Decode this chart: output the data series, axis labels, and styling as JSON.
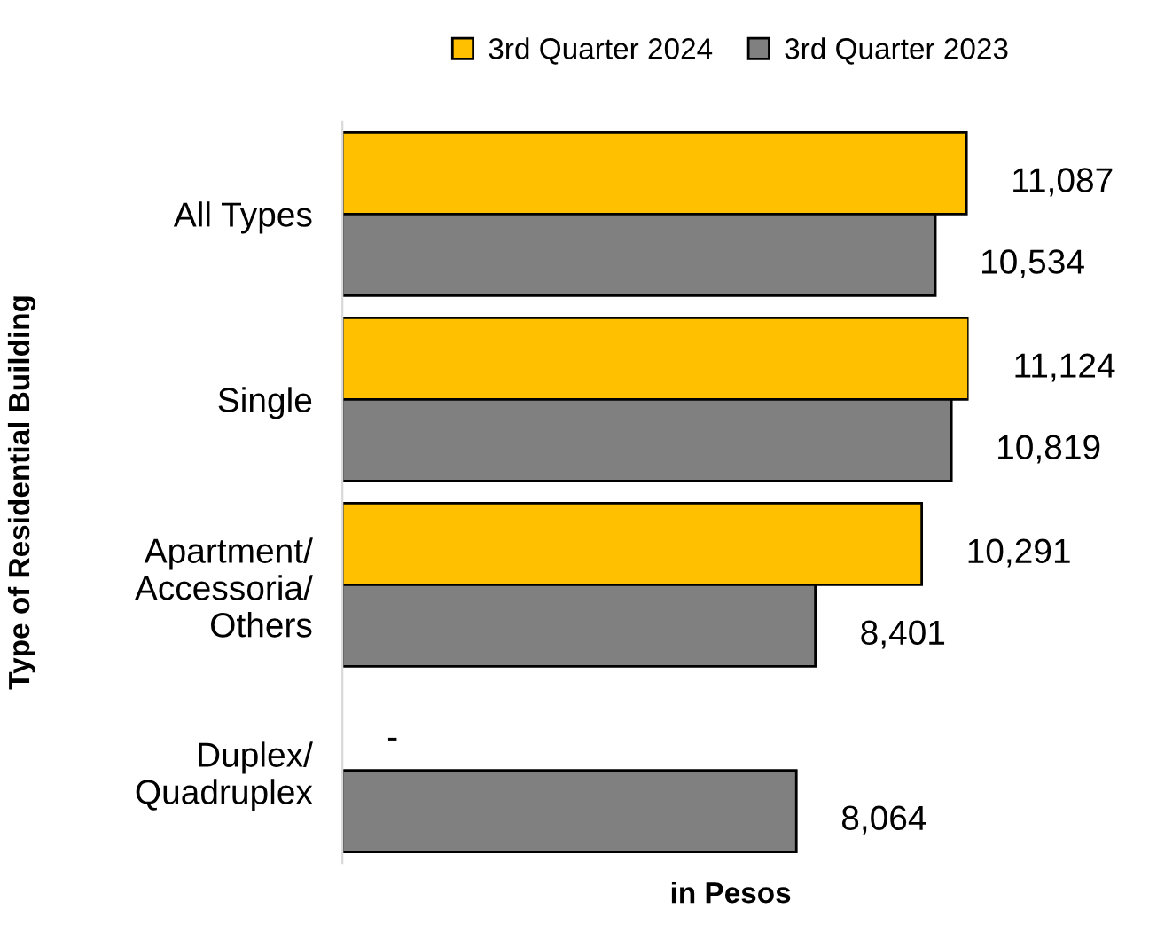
{
  "chart_data": {
    "type": "bar",
    "orientation": "horizontal",
    "ylabel": "Type of Residential Building",
    "xlabel": "in Pesos",
    "categories": [
      "All Types",
      "Single",
      "Apartment/\nAccessoria/\nOthers",
      "Duplex/\nQuadruplex"
    ],
    "series": [
      {
        "name": "3rd Quarter 2024",
        "color": "#ffc000",
        "values": [
          11087,
          11124,
          10291,
          null
        ],
        "value_labels": [
          "11,087",
          "11,124",
          "10,291",
          "-"
        ]
      },
      {
        "name": "3rd Quarter 2023",
        "color": "#808080",
        "values": [
          10534,
          10819,
          8401,
          8064
        ],
        "value_labels": [
          "10,534",
          "10,819",
          "8,401",
          "8,064"
        ]
      }
    ],
    "tick_labels": "y",
    "legend": "top",
    "grid": false
  }
}
